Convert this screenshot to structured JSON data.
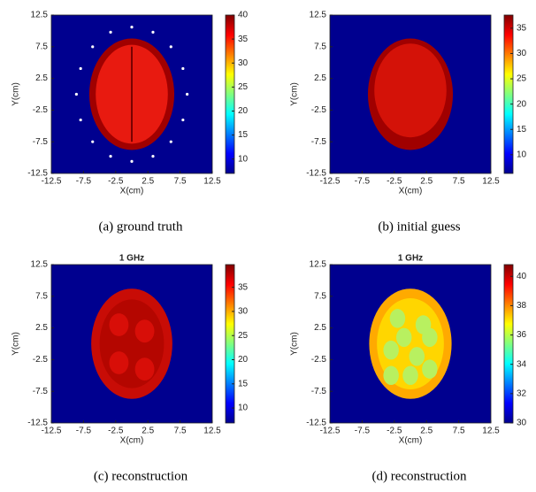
{
  "chart_data": [
    {
      "type": "heatmap",
      "caption": "(a)  ground truth",
      "xlabel": "X(cm)",
      "ylabel": "Y(cm)",
      "xlim": [
        -12.5,
        12.5
      ],
      "ylim": [
        -12.5,
        12.5
      ],
      "xticks": [
        -12.5,
        -7.5,
        -2.5,
        2.5,
        7.5,
        12.5
      ],
      "yticks": [
        -12.5,
        -7.5,
        -2.5,
        2.5,
        7.5,
        12.5
      ],
      "clim": [
        7,
        40
      ],
      "cticks": [
        10,
        15,
        20,
        25,
        30,
        35,
        40
      ]
    },
    {
      "type": "heatmap",
      "caption": "(b)  initial guess",
      "xlabel": "X(cm)",
      "ylabel": "Y(cm)",
      "xlim": [
        -12.5,
        12.5
      ],
      "ylim": [
        -12.5,
        12.5
      ],
      "xticks": [
        -12.5,
        -7.5,
        -2.5,
        2.5,
        7.5,
        12.5
      ],
      "yticks": [
        -12.5,
        -7.5,
        -2.5,
        2.5,
        7.5,
        12.5
      ],
      "clim": [
        6.3,
        37.6
      ],
      "cticks": [
        10,
        15,
        20,
        25,
        30,
        35
      ]
    },
    {
      "type": "heatmap",
      "title": "1 GHz",
      "caption": "(c)  reconstruction",
      "xlabel": "X(cm)",
      "ylabel": "Y(cm)",
      "xlim": [
        -12.5,
        12.5
      ],
      "ylim": [
        -12.5,
        12.5
      ],
      "xticks": [
        -12.5,
        -7.5,
        -2.5,
        2.5,
        7.5,
        12.5
      ],
      "yticks": [
        -12.5,
        -7.5,
        -2.5,
        2.5,
        7.5,
        12.5
      ],
      "clim": [
        6.9,
        39.7
      ],
      "cticks": [
        10,
        15,
        20,
        25,
        30,
        35
      ]
    },
    {
      "type": "heatmap",
      "title": "1 GHz",
      "caption": "(d)  reconstruction",
      "xlabel": "X(cm)",
      "ylabel": "Y(cm)",
      "xlim": [
        -12.5,
        12.5
      ],
      "ylim": [
        -12.5,
        12.5
      ],
      "xticks": [
        -12.5,
        -7.5,
        -2.5,
        2.5,
        7.5,
        12.5
      ],
      "yticks": [
        -12.5,
        -7.5,
        -2.5,
        2.5,
        7.5,
        12.5
      ],
      "clim": [
        30,
        40.8
      ],
      "cticks": [
        30,
        32,
        34,
        36,
        38,
        40
      ]
    }
  ]
}
